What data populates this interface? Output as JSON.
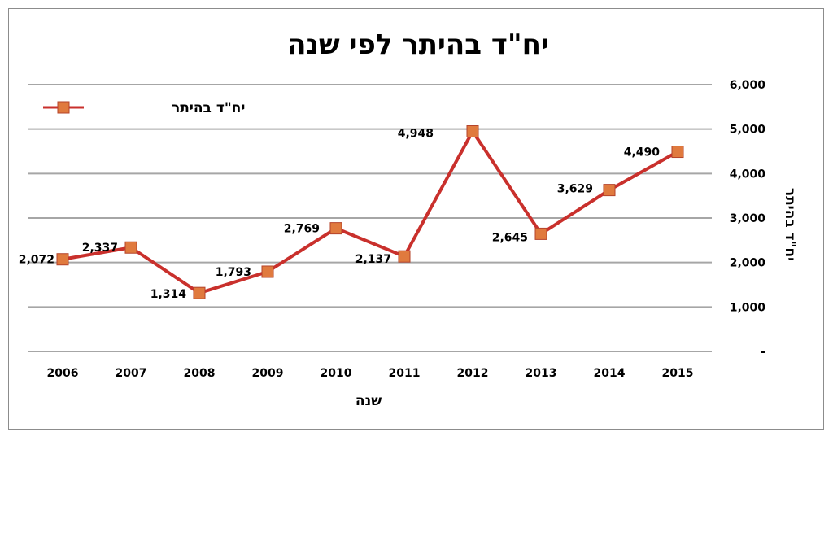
{
  "chart_data": {
    "type": "line",
    "title": "יח\"ד בהיתר לפי שנה",
    "xlabel": "שנה",
    "ylabel": "יח\"ד בהיתר",
    "categories": [
      "2006",
      "2007",
      "2008",
      "2009",
      "2010",
      "2011",
      "2012",
      "2013",
      "2014",
      "2015"
    ],
    "series": [
      {
        "name": "יח\"ד בהיתר",
        "values": [
          2072,
          2337,
          1314,
          1793,
          2769,
          2137,
          4948,
          2645,
          3629,
          4490
        ],
        "labels": [
          "2,072",
          "2,337",
          "1,314",
          "1,793",
          "2,769",
          "2,137",
          "4,948",
          "2,645",
          "3,629",
          "4,490"
        ]
      }
    ],
    "ylim": [
      0,
      6000
    ],
    "yticks": [
      0,
      1000,
      2000,
      3000,
      4000,
      5000,
      6000
    ],
    "ytick_labels": [
      "-",
      "1,000",
      "2,000",
      "3,000",
      "4,000",
      "5,000",
      "6,000"
    ],
    "y_axis_side": "right",
    "grid": true,
    "legend_position": "top-left",
    "colors": {
      "line": "#c9302c",
      "marker_fill": "#e07a3e",
      "marker_edge": "#b5432a",
      "grid": "#a6a6a6"
    }
  }
}
